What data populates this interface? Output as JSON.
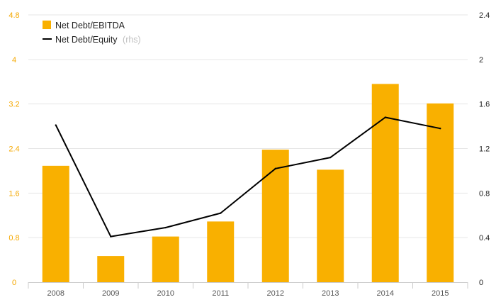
{
  "chart_data": {
    "type": "bar+line",
    "categories": [
      "2008",
      "2009",
      "2010",
      "2011",
      "2012",
      "2013",
      "2014",
      "2015"
    ],
    "series": [
      {
        "name": "Net Debt/EBITDA",
        "type": "bar",
        "axis": "left",
        "color": "#f9b000",
        "values": [
          2.09,
          0.47,
          0.82,
          1.09,
          2.38,
          2.02,
          3.56,
          3.21
        ]
      },
      {
        "name": "Net Debt/Equity",
        "name_note": "(rhs)",
        "type": "line",
        "axis": "right",
        "color": "#000000",
        "values": [
          1.41,
          0.41,
          0.49,
          0.62,
          1.02,
          1.12,
          1.48,
          1.38
        ]
      }
    ],
    "y_left": {
      "range": [
        0,
        4.8
      ],
      "ticks": [
        "0",
        "0.8",
        "1.6",
        "2.4",
        "3.2",
        "4",
        "4.8"
      ],
      "tick_values": [
        0,
        0.8,
        1.6,
        2.4,
        3.2,
        4,
        4.8
      ],
      "color": "#f5a800"
    },
    "y_right": {
      "range": [
        0,
        2.4
      ],
      "ticks": [
        "0",
        "0.4",
        "0.8",
        "1.2",
        "1.6",
        "2",
        "2.4"
      ],
      "tick_values": [
        0,
        0.4,
        0.8,
        1.2,
        1.6,
        2,
        2.4
      ],
      "color": "#222222"
    },
    "grid": true,
    "legend_position": "top-left"
  }
}
